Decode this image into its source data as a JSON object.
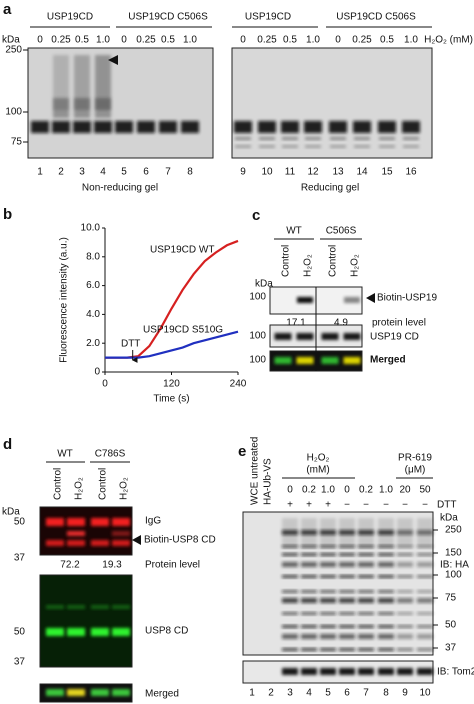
{
  "panel_letters": [
    "a",
    "b",
    "c",
    "d",
    "e"
  ],
  "panel_a": {
    "kda_label": "kDa",
    "groups": [
      "USP19CD",
      "USP19CD  C506S",
      "USP19CD",
      "USP19CD  C506S"
    ],
    "conc_label": "H₂O₂ (mM)",
    "concentrations": [
      "0",
      "0.25",
      "0.5",
      "1.0",
      "0",
      "0.25",
      "0.5",
      "1.0",
      "0",
      "0.25",
      "0.5",
      "1.0",
      "0",
      "0.25",
      "0.5",
      "1.0"
    ],
    "lanes": [
      "1",
      "2",
      "3",
      "4",
      "5",
      "6",
      "7",
      "8",
      "9",
      "10",
      "11",
      "12",
      "13",
      "14",
      "15",
      "16"
    ],
    "markers": [
      "250",
      "100",
      "75"
    ],
    "gel_labels": [
      "Non-reducing gel",
      "Reducing gel"
    ]
  },
  "chart_data": {
    "type": "line",
    "y_label": "Fluorescence intensity (a.u.)",
    "x_label": "Time (s)",
    "x": [
      0,
      20,
      40,
      60,
      80,
      100,
      120,
      140,
      160,
      180,
      200,
      220,
      240
    ],
    "series": [
      {
        "name": "USP19CD WT",
        "color": "#d62020",
        "values": [
          1.0,
          1.0,
          1.0,
          1.1,
          1.8,
          3.0,
          4.4,
          5.7,
          6.8,
          7.7,
          8.3,
          8.8,
          9.1
        ]
      },
      {
        "name": "USP19CD S510G",
        "color": "#2030c0",
        "values": [
          1.0,
          1.0,
          1.0,
          1.0,
          1.1,
          1.3,
          1.5,
          1.7,
          2.0,
          2.2,
          2.4,
          2.6,
          2.8
        ]
      }
    ],
    "annotation": "DTT",
    "annotation_x": 50,
    "xlim": [
      0,
      240
    ],
    "xticks": [
      0,
      120,
      240
    ],
    "ylim": [
      0,
      10
    ],
    "yticks": [
      0,
      {
        "value": 2,
        "label": "2.0"
      },
      {
        "value": 4,
        "label": "4.0"
      },
      {
        "value": 6,
        "label": "6.0"
      },
      {
        "value": 8,
        "label": "8.0"
      },
      {
        "value": 10,
        "label": "10.0"
      }
    ]
  },
  "panel_c": {
    "groups": [
      "WT",
      "C506S"
    ],
    "lanes": [
      "Control",
      "H₂O₂",
      "Control",
      "H₂O₂"
    ],
    "kda_label": "kDa",
    "markers": [
      "100",
      "100",
      "100"
    ],
    "labels": [
      "Biotin-USP19",
      "USP19 CD",
      "Merged"
    ],
    "levels": [
      "17.1",
      "4.9"
    ],
    "level_label": "protein level"
  },
  "panel_d": {
    "groups": [
      "WT",
      "C786S"
    ],
    "lanes": [
      "Control",
      "H₂O₂",
      "Control",
      "H₂O₂"
    ],
    "kda_label": "kDa",
    "markers": [
      "50",
      "37",
      "50",
      "37"
    ],
    "labels": [
      "IgG",
      "Biotin-USP8 CD",
      "USP8 CD",
      "Merged"
    ],
    "levels": [
      "72.2",
      "19.3"
    ],
    "level_label": "Protein level"
  },
  "panel_e": {
    "lane_headers": [
      "WCE untreated",
      "HA-Ub-VS"
    ],
    "group_titles": [
      "H₂O₂",
      "PR-619"
    ],
    "group_units": [
      "(mM)",
      "(μM)"
    ],
    "concentrations": [
      "0",
      "0.2",
      "1.0",
      "0",
      "0.2",
      "1.0",
      "20",
      "50"
    ],
    "dtt_label": "DTT",
    "dtt": [
      "+",
      "+",
      "+",
      "−",
      "−",
      "−",
      "−",
      "−"
    ],
    "kda_label": "kDa",
    "markers": [
      "250",
      "150",
      "100",
      "75",
      "50",
      "37"
    ],
    "ib": [
      "IB: HA",
      "IB: Tom20"
    ],
    "lanes": [
      "1",
      "2",
      "3",
      "4",
      "5",
      "6",
      "7",
      "8",
      "9",
      "10"
    ]
  }
}
